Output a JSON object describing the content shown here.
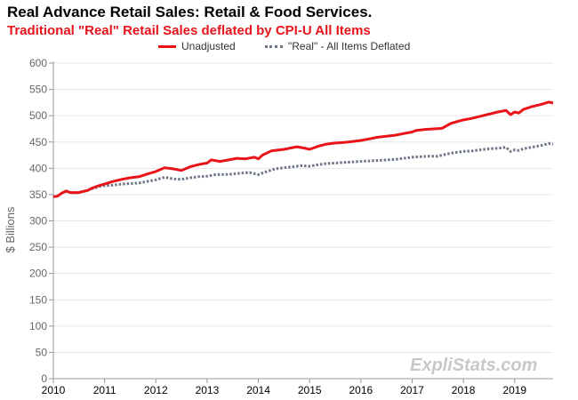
{
  "chart_data": {
    "type": "line",
    "title": "Real Advance Retail Sales: Retail & Food Services.",
    "subtitle": "Traditional \"Real\" Retail Sales deflated by CPI-U All Items",
    "ylabel": "$ Billions",
    "xlabel": "",
    "ylim": [
      0,
      600
    ],
    "xlim": [
      2010,
      2019.75
    ],
    "y_ticks": [
      "0",
      "50",
      "100",
      "150",
      "200",
      "250",
      "300",
      "350",
      "400",
      "450",
      "500",
      "550",
      "600"
    ],
    "x_ticks": [
      "2010",
      "2011",
      "2012",
      "2013",
      "2014",
      "2015",
      "2016",
      "2017",
      "2018",
      "2019"
    ],
    "grid": true,
    "legend_position": "top",
    "series": [
      {
        "name": "Unadjusted",
        "color": "#e8141a",
        "style": "solid",
        "points": [
          [
            2010.0,
            346
          ],
          [
            2010.08,
            347
          ],
          [
            2010.17,
            353
          ],
          [
            2010.25,
            357
          ],
          [
            2010.33,
            354
          ],
          [
            2010.42,
            354
          ],
          [
            2010.5,
            354
          ],
          [
            2010.58,
            356
          ],
          [
            2010.67,
            358
          ],
          [
            2010.75,
            362
          ],
          [
            2010.83,
            365
          ],
          [
            2010.92,
            368
          ],
          [
            2011.0,
            370
          ],
          [
            2011.17,
            375
          ],
          [
            2011.33,
            379
          ],
          [
            2011.5,
            382
          ],
          [
            2011.67,
            384
          ],
          [
            2011.83,
            389
          ],
          [
            2012.0,
            394
          ],
          [
            2012.17,
            401
          ],
          [
            2012.33,
            399
          ],
          [
            2012.5,
            396
          ],
          [
            2012.67,
            403
          ],
          [
            2012.83,
            407
          ],
          [
            2013.0,
            410
          ],
          [
            2013.08,
            416
          ],
          [
            2013.25,
            413
          ],
          [
            2013.42,
            416
          ],
          [
            2013.58,
            419
          ],
          [
            2013.75,
            418
          ],
          [
            2013.92,
            421
          ],
          [
            2014.0,
            418
          ],
          [
            2014.08,
            425
          ],
          [
            2014.25,
            433
          ],
          [
            2014.5,
            436
          ],
          [
            2014.75,
            441
          ],
          [
            2014.92,
            438
          ],
          [
            2015.0,
            436
          ],
          [
            2015.17,
            442
          ],
          [
            2015.33,
            446
          ],
          [
            2015.5,
            448
          ],
          [
            2015.67,
            449
          ],
          [
            2015.83,
            451
          ],
          [
            2016.0,
            453
          ],
          [
            2016.17,
            456
          ],
          [
            2016.33,
            459
          ],
          [
            2016.5,
            461
          ],
          [
            2016.67,
            463
          ],
          [
            2016.83,
            466
          ],
          [
            2017.0,
            469
          ],
          [
            2017.08,
            472
          ],
          [
            2017.25,
            474
          ],
          [
            2017.42,
            475
          ],
          [
            2017.58,
            476
          ],
          [
            2017.75,
            485
          ],
          [
            2017.92,
            490
          ],
          [
            2018.0,
            492
          ],
          [
            2018.17,
            495
          ],
          [
            2018.33,
            499
          ],
          [
            2018.5,
            503
          ],
          [
            2018.67,
            507
          ],
          [
            2018.83,
            510
          ],
          [
            2018.92,
            502
          ],
          [
            2019.0,
            507
          ],
          [
            2019.08,
            505
          ],
          [
            2019.17,
            512
          ],
          [
            2019.33,
            517
          ],
          [
            2019.5,
            521
          ],
          [
            2019.67,
            526
          ],
          [
            2019.75,
            524
          ]
        ]
      },
      {
        "name": "\"Real\" - All Items Deflated",
        "color": "#6e7786",
        "style": "dotted",
        "points": [
          [
            2010.0,
            346
          ],
          [
            2010.08,
            347
          ],
          [
            2010.17,
            353
          ],
          [
            2010.25,
            356
          ],
          [
            2010.33,
            354
          ],
          [
            2010.42,
            353
          ],
          [
            2010.5,
            354
          ],
          [
            2010.58,
            356
          ],
          [
            2010.67,
            358
          ],
          [
            2010.75,
            361
          ],
          [
            2010.83,
            363
          ],
          [
            2010.92,
            366
          ],
          [
            2011.0,
            367
          ],
          [
            2011.17,
            368
          ],
          [
            2011.33,
            370
          ],
          [
            2011.5,
            371
          ],
          [
            2011.67,
            372
          ],
          [
            2011.83,
            375
          ],
          [
            2012.0,
            378
          ],
          [
            2012.17,
            383
          ],
          [
            2012.33,
            380
          ],
          [
            2012.5,
            379
          ],
          [
            2012.67,
            382
          ],
          [
            2012.83,
            384
          ],
          [
            2013.0,
            385
          ],
          [
            2013.17,
            388
          ],
          [
            2013.33,
            388
          ],
          [
            2013.5,
            389
          ],
          [
            2013.67,
            391
          ],
          [
            2013.83,
            392
          ],
          [
            2014.0,
            388
          ],
          [
            2014.17,
            394
          ],
          [
            2014.33,
            399
          ],
          [
            2014.5,
            401
          ],
          [
            2014.67,
            403
          ],
          [
            2014.83,
            405
          ],
          [
            2015.0,
            404
          ],
          [
            2015.17,
            407
          ],
          [
            2015.33,
            409
          ],
          [
            2015.5,
            410
          ],
          [
            2015.67,
            411
          ],
          [
            2015.83,
            412
          ],
          [
            2016.0,
            413
          ],
          [
            2016.17,
            414
          ],
          [
            2016.33,
            415
          ],
          [
            2016.5,
            416
          ],
          [
            2016.67,
            417
          ],
          [
            2016.83,
            419
          ],
          [
            2017.0,
            421
          ],
          [
            2017.17,
            422
          ],
          [
            2017.33,
            423
          ],
          [
            2017.5,
            423
          ],
          [
            2017.67,
            427
          ],
          [
            2017.83,
            430
          ],
          [
            2018.0,
            432
          ],
          [
            2018.17,
            433
          ],
          [
            2018.33,
            435
          ],
          [
            2018.5,
            437
          ],
          [
            2018.67,
            438
          ],
          [
            2018.83,
            440
          ],
          [
            2018.92,
            432
          ],
          [
            2019.0,
            435
          ],
          [
            2019.08,
            434
          ],
          [
            2019.17,
            437
          ],
          [
            2019.33,
            440
          ],
          [
            2019.5,
            443
          ],
          [
            2019.67,
            447
          ],
          [
            2019.75,
            446
          ]
        ]
      }
    ]
  },
  "watermark": "ExpliStats.com"
}
